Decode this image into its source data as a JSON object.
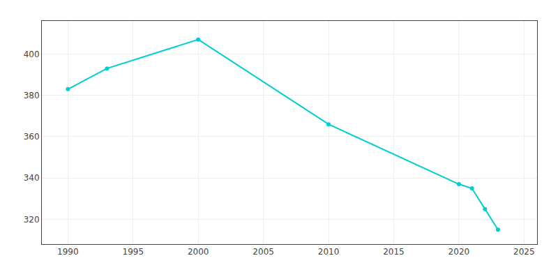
{
  "chart_data": {
    "type": "line",
    "x": [
      1990,
      1993,
      2000,
      2010,
      2020,
      2021,
      2022,
      2023
    ],
    "values": [
      383,
      393,
      407,
      366,
      337,
      335,
      325,
      315
    ],
    "color": "#00CED1",
    "marker": "circle",
    "xlim": [
      1988,
      2026
    ],
    "ylim": [
      308,
      416
    ],
    "xticks": [
      1990,
      1995,
      2000,
      2005,
      2010,
      2015,
      2020,
      2025
    ],
    "yticks": [
      320,
      340,
      360,
      380,
      400
    ],
    "grid": true
  }
}
